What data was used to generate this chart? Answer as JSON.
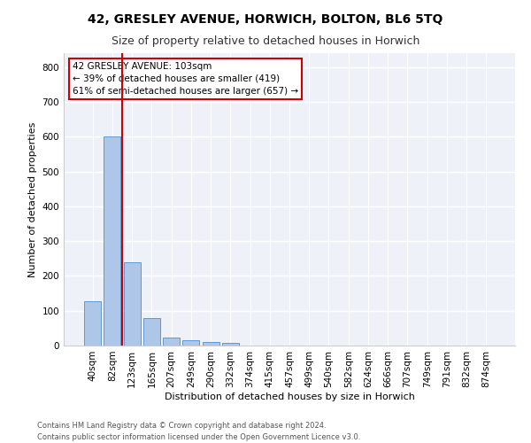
{
  "title": "42, GRESLEY AVENUE, HORWICH, BOLTON, BL6 5TQ",
  "subtitle": "Size of property relative to detached houses in Horwich",
  "xlabel": "Distribution of detached houses by size in Horwich",
  "ylabel": "Number of detached properties",
  "bar_categories": [
    "40sqm",
    "82sqm",
    "123sqm",
    "165sqm",
    "207sqm",
    "249sqm",
    "290sqm",
    "332sqm",
    "374sqm",
    "415sqm",
    "457sqm",
    "499sqm",
    "540sqm",
    "582sqm",
    "624sqm",
    "666sqm",
    "707sqm",
    "749sqm",
    "791sqm",
    "832sqm",
    "874sqm"
  ],
  "bar_heights": [
    127,
    601,
    239,
    80,
    23,
    15,
    10,
    8,
    0,
    0,
    0,
    0,
    0,
    0,
    0,
    0,
    0,
    0,
    0,
    0,
    0
  ],
  "bar_color": "#aec6e8",
  "bar_edge_color": "#5b9bd5",
  "vline_x": 1.5,
  "vline_color": "#cc0000",
  "annotation_line1": "42 GRESLEY AVENUE: 103sqm",
  "annotation_line2": "← 39% of detached houses are smaller (419)",
  "annotation_line3": "61% of semi-detached houses are larger (657) →",
  "annotation_box_color": "#ffffff",
  "annotation_box_edge_color": "#cc0000",
  "ylim": [
    0,
    840
  ],
  "yticks": [
    0,
    100,
    200,
    300,
    400,
    500,
    600,
    700,
    800
  ],
  "bg_color": "#eef2f8",
  "footnote": "Contains HM Land Registry data © Crown copyright and database right 2024.\nContains public sector information licensed under the Open Government Licence v3.0.",
  "title_fontsize": 10,
  "subtitle_fontsize": 9,
  "axis_label_fontsize": 8,
  "tick_fontsize": 7.5,
  "annotation_fontsize": 7.5
}
